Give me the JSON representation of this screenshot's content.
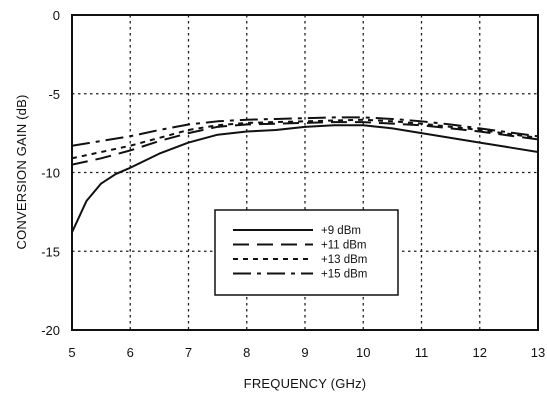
{
  "chart_data": {
    "type": "line",
    "title": "",
    "xlabel": "FREQUENCY (GHz)",
    "ylabel": "CONVERSION GAIN (dB)",
    "xlim": [
      5,
      13
    ],
    "ylim": [
      -20,
      0
    ],
    "xticks": [
      "5",
      "6",
      "7",
      "8",
      "9",
      "10",
      "11",
      "12",
      "13"
    ],
    "yticks": [
      "0",
      "-5",
      "-10",
      "-15",
      "-20"
    ],
    "grid": true,
    "legend_position": "lower-center",
    "series": [
      {
        "name": "+9 dBm",
        "style": "solid",
        "x": [
          5,
          5.25,
          5.5,
          5.75,
          6,
          6.5,
          7,
          7.5,
          8,
          8.5,
          9,
          9.5,
          10,
          10.5,
          11,
          11.5,
          12,
          12.5,
          13
        ],
        "y": [
          -13.8,
          -11.8,
          -10.7,
          -10.1,
          -9.7,
          -8.8,
          -8.1,
          -7.6,
          -7.4,
          -7.3,
          -7.1,
          -7.0,
          -7.0,
          -7.2,
          -7.5,
          -7.8,
          -8.1,
          -8.4,
          -8.7
        ]
      },
      {
        "name": "+11 dBm",
        "style": "long-dash",
        "x": [
          5,
          5.5,
          6,
          6.5,
          7,
          7.5,
          8,
          8.5,
          9,
          9.5,
          10,
          10.5,
          11,
          11.5,
          12,
          12.5,
          13
        ],
        "y": [
          -9.5,
          -9.1,
          -8.6,
          -8.0,
          -7.5,
          -7.1,
          -6.95,
          -6.9,
          -6.85,
          -6.8,
          -6.8,
          -6.9,
          -7.0,
          -7.2,
          -7.4,
          -7.65,
          -7.9
        ]
      },
      {
        "name": "+13 dBm",
        "style": "short-dash",
        "x": [
          5,
          5.5,
          6,
          6.5,
          7,
          7.5,
          8,
          8.5,
          9,
          9.5,
          10,
          10.5,
          11,
          11.5,
          12,
          12.5,
          13
        ],
        "y": [
          -9.1,
          -8.7,
          -8.3,
          -7.8,
          -7.3,
          -7.0,
          -6.85,
          -6.8,
          -6.75,
          -6.7,
          -6.65,
          -6.75,
          -6.9,
          -7.1,
          -7.3,
          -7.55,
          -7.8
        ]
      },
      {
        "name": "+15 dBm",
        "style": "dash-dot",
        "x": [
          5,
          5.5,
          6,
          6.5,
          7,
          7.5,
          8,
          8.5,
          9,
          9.5,
          10,
          10.5,
          11,
          11.5,
          12,
          12.5,
          13
        ],
        "y": [
          -8.3,
          -8.0,
          -7.7,
          -7.3,
          -6.95,
          -6.75,
          -6.65,
          -6.6,
          -6.55,
          -6.5,
          -6.5,
          -6.6,
          -6.75,
          -6.95,
          -7.2,
          -7.45,
          -7.7
        ]
      }
    ]
  }
}
